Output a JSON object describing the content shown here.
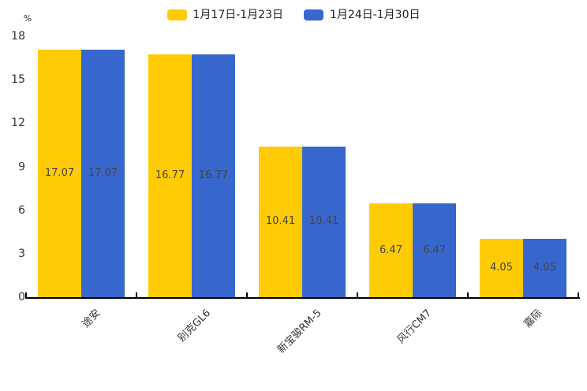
{
  "chart_data": {
    "type": "bar",
    "title": "",
    "xlabel": "",
    "ylabel": "%",
    "categories": [
      "途安",
      "别克GL6",
      "新宝骏RM-5",
      "风行CM7",
      "嘉际"
    ],
    "series": [
      {
        "name": "1月17日-1月23日",
        "color": "#FFCB05",
        "values": [
          17.07,
          16.77,
          10.41,
          6.47,
          4.05
        ]
      },
      {
        "name": "1月24日-1月30日",
        "color": "#3767CD",
        "values": [
          17.07,
          16.77,
          10.41,
          6.47,
          4.05
        ]
      }
    ],
    "value_labels": [
      "17.07",
      "16.77",
      "10.41",
      "6.47",
      "4.05"
    ],
    "ylim": [
      0,
      18
    ],
    "yticks": [
      "0",
      "3",
      "6",
      "9",
      "12",
      "15",
      "18"
    ],
    "grid": false,
    "legend_position": "top",
    "value_label_color": "#444444",
    "axis_color": "#000000",
    "tick_label_color": "#333333"
  }
}
